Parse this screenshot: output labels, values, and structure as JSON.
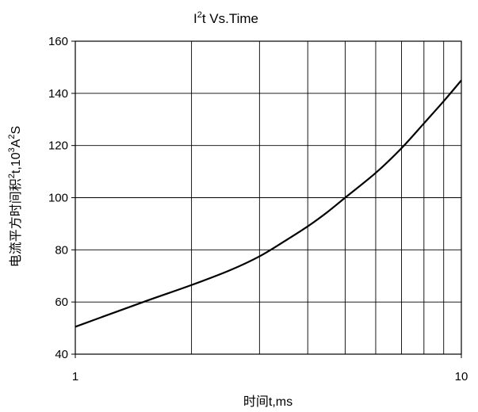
{
  "chart_data": {
    "type": "line",
    "title": {
      "base": "I",
      "sup": "2",
      "rest": "t  Vs.Time"
    },
    "xlabel": "时间t,ms",
    "ylabel": {
      "pre": "电流平方时间积",
      "sup1": "2",
      "mid": "t,10",
      "sup2": "3",
      "mid2": "A",
      "sup3": "2",
      "post": "S"
    },
    "x_scale": "log",
    "xlim": [
      1,
      10
    ],
    "ylim": [
      40,
      160
    ],
    "x_tick_labels": [
      {
        "value": 1,
        "label": "1"
      },
      {
        "value": 10,
        "label": "10"
      }
    ],
    "y_tick_labels": [
      "40",
      "60",
      "80",
      "100",
      "120",
      "140",
      "160"
    ],
    "y_ticks": [
      40,
      60,
      80,
      100,
      120,
      140,
      160
    ],
    "x_gridlines": [
      2,
      3,
      4,
      5,
      6,
      7,
      8,
      9
    ],
    "grid": true,
    "series": [
      {
        "x": [
          1,
          1.5,
          2,
          2.5,
          3,
          3.5,
          4,
          4.5,
          5,
          6,
          7,
          8,
          9,
          10
        ],
        "values": [
          50.5,
          60,
          66.5,
          72,
          77.5,
          83.5,
          89,
          94.5,
          100,
          109.5,
          119,
          128.5,
          137,
          145
        ]
      }
    ]
  }
}
